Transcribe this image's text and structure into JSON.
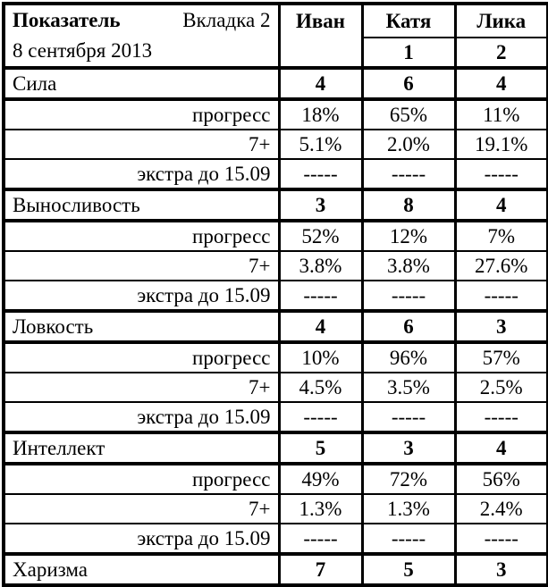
{
  "colors": {
    "background": "#ffffff",
    "grid": "#000000",
    "text": "#000000"
  },
  "table": {
    "header": {
      "col_title": "Показатель",
      "col_tab": "Вкладка 2",
      "date": "8 сентября 2013",
      "people": [
        "Иван",
        "Катя",
        "Лика"
      ],
      "people_subvalues": [
        "1",
        "2"
      ]
    },
    "row_labels": {
      "progress": "прогресс",
      "seven_plus": "7+",
      "extra": "экстра до 15.09"
    },
    "sections": [
      {
        "name": "Сила",
        "scores": [
          "4",
          "6",
          "4"
        ],
        "rows": [
          {
            "label": "прогресс",
            "values": [
              "18%",
              "65%",
              "11%"
            ]
          },
          {
            "label": "7+",
            "values": [
              "5.1%",
              "2.0%",
              "19.1%"
            ]
          },
          {
            "label": "экстра до 15.09",
            "values": [
              "-----",
              "-----",
              "-----"
            ]
          }
        ]
      },
      {
        "name": "Выносливость",
        "scores": [
          "3",
          "8",
          "4"
        ],
        "rows": [
          {
            "label": "прогресс",
            "values": [
              "52%",
              "12%",
              "7%"
            ]
          },
          {
            "label": "7+",
            "values": [
              "3.8%",
              "3.8%",
              "27.6%"
            ]
          },
          {
            "label": "экстра до 15.09",
            "values": [
              "-----",
              "-----",
              "-----"
            ]
          }
        ]
      },
      {
        "name": "Ловкость",
        "scores": [
          "4",
          "6",
          "3"
        ],
        "rows": [
          {
            "label": "прогресс",
            "values": [
              "10%",
              "96%",
              "57%"
            ]
          },
          {
            "label": "7+",
            "values": [
              "4.5%",
              "3.5%",
              "2.5%"
            ]
          },
          {
            "label": "экстра до 15.09",
            "values": [
              "-----",
              "-----",
              "-----"
            ]
          }
        ]
      },
      {
        "name": "Интеллект",
        "scores": [
          "5",
          "3",
          "4"
        ],
        "rows": [
          {
            "label": "прогресс",
            "values": [
              "49%",
              "72%",
              "56%"
            ]
          },
          {
            "label": "7+",
            "values": [
              "1.3%",
              "1.3%",
              "2.4%"
            ]
          },
          {
            "label": "экстра до 15.09",
            "values": [
              "-----",
              "-----",
              "-----"
            ]
          }
        ]
      },
      {
        "name": "Харизма",
        "scores": [
          "7",
          "5",
          "3"
        ],
        "rows": []
      }
    ]
  }
}
